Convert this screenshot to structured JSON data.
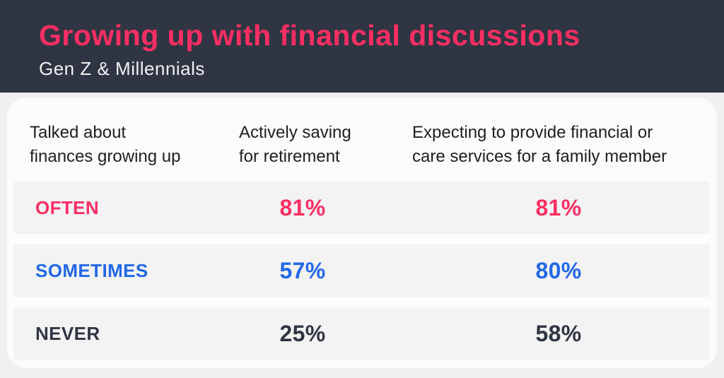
{
  "header": {
    "title": "Growing up with financial discussions",
    "subtitle": "Gen Z & Millennials"
  },
  "table": {
    "columns": [
      "Talked about finances growing up",
      "Actively saving for retirement",
      "Expecting to provide financial or care services for a family member"
    ],
    "rows": [
      {
        "label": "OFTEN",
        "values": [
          "81%",
          "81%"
        ],
        "color": "#fb2e63"
      },
      {
        "label": "SOMETIMES",
        "values": [
          "57%",
          "80%"
        ],
        "color": "#2268e8"
      },
      {
        "label": "NEVER",
        "values": [
          "25%",
          "58%"
        ],
        "color": "#2f3542"
      }
    ]
  },
  "colors": {
    "banner_background": "#2f3542",
    "title_pink": "#fb2e63",
    "subtitle_white": "#eef0f2",
    "row_stripe": "#f3f3f4",
    "card_background": "#fcfcfd",
    "page_background": "#eff0f2",
    "blue": "#2268e8",
    "navy": "#2f3542"
  },
  "chart_data": {
    "type": "table",
    "title": "Growing up with financial discussions",
    "subtitle": "Gen Z & Millennials",
    "row_header": "Talked about finances growing up",
    "categories": [
      "OFTEN",
      "SOMETIMES",
      "NEVER"
    ],
    "series": [
      {
        "name": "Actively saving for retirement",
        "values": [
          81,
          57,
          25
        ]
      },
      {
        "name": "Expecting to provide financial or care services for a family member",
        "values": [
          81,
          80,
          58
        ]
      }
    ],
    "unit": "%",
    "legend_position": "none",
    "grid": false
  }
}
